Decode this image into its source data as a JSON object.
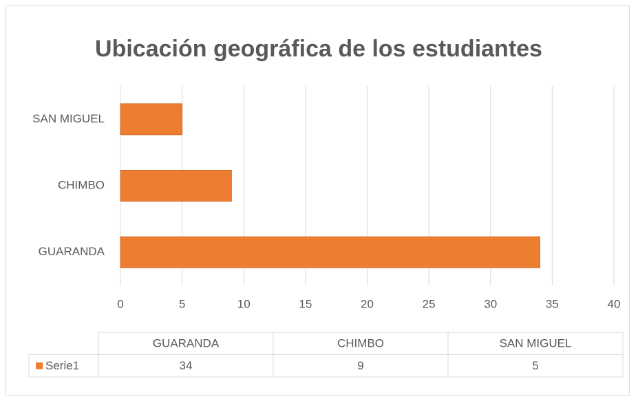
{
  "chart_data": {
    "type": "bar",
    "orientation": "horizontal",
    "title": "Ubicación geográfica de los estudiantes",
    "categories": [
      "GUARANDA",
      "CHIMBO",
      "SAN MIGUEL"
    ],
    "series": [
      {
        "name": "Serie1",
        "color": "#ed7d31",
        "values": [
          34,
          9,
          5
        ]
      }
    ],
    "xlim": [
      0,
      40
    ],
    "xticks": [
      0,
      5,
      10,
      15,
      20,
      25,
      30,
      35,
      40
    ],
    "grid": true,
    "data_table": true
  }
}
